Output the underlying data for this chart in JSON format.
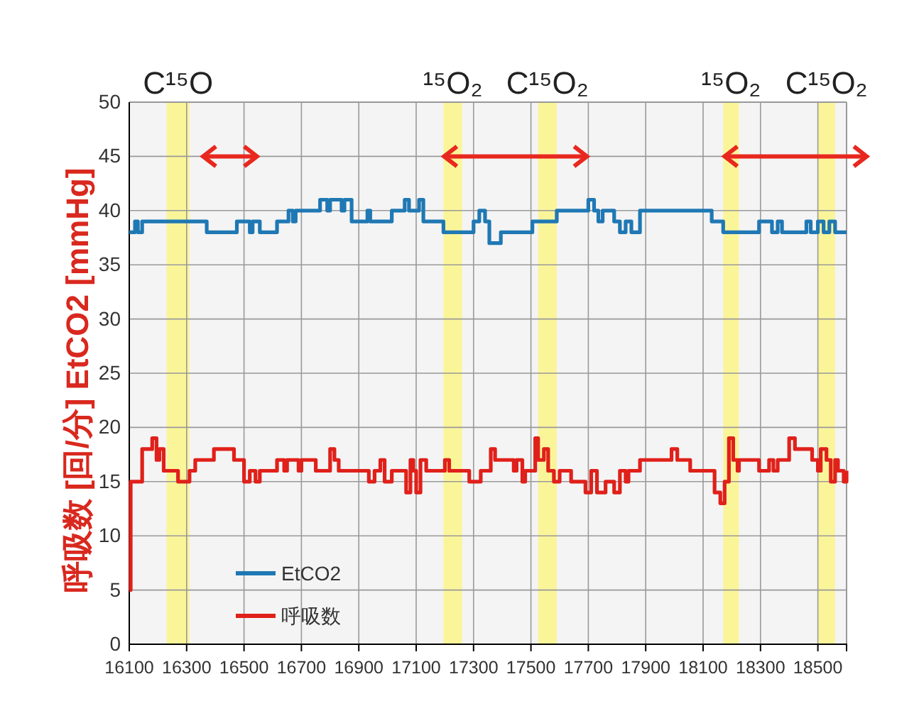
{
  "chart_data": {
    "type": "step",
    "ylabel": "呼吸数 [回/分]  EtCO2 [mmHg]",
    "xlim": [
      16100,
      18600
    ],
    "xticks": [
      16100,
      16300,
      16500,
      16700,
      16900,
      17100,
      17300,
      17500,
      17700,
      17900,
      18100,
      18300,
      18500
    ],
    "ylim": [
      0,
      50
    ],
    "yticks": [
      0,
      5,
      10,
      15,
      20,
      25,
      30,
      35,
      40,
      45,
      50
    ],
    "grid": true,
    "legend": "bottom left",
    "line_style": "solid",
    "marker": "none",
    "bands": [
      {
        "axis": "x",
        "from": 16230,
        "to": 16310,
        "label": "C¹⁵O",
        "color": "#fbf59a"
      },
      {
        "axis": "x",
        "from": 17195,
        "to": 17260,
        "label": "¹⁵O₂",
        "color": "#fbf59a"
      },
      {
        "axis": "x",
        "from": 17525,
        "to": 17590,
        "label": "C¹⁵O₂",
        "color": "#fbf59a"
      },
      {
        "axis": "x",
        "from": 18170,
        "to": 18225,
        "label": "¹⁵O₂",
        "color": "#fbf59a"
      },
      {
        "axis": "x",
        "from": 18500,
        "to": 18560,
        "label": "C¹⁵O₂",
        "color": "#fbf59a"
      }
    ],
    "series": [
      {
        "name": "EtCO2",
        "color": "#1f78b4",
        "x": [
          16100,
          16120,
          16130,
          16145,
          16370,
          16475,
          16520,
          16530,
          16555,
          16615,
          16655,
          16670,
          16680,
          16765,
          16790,
          16800,
          16840,
          16850,
          16875,
          16930,
          16940,
          17015,
          17060,
          17075,
          17110,
          17125,
          17195,
          17300,
          17320,
          17340,
          17355,
          17395,
          17505,
          17590,
          17700,
          17720,
          17735,
          17750,
          17790,
          17810,
          17830,
          17850,
          17880,
          18130,
          18170,
          18295,
          18340,
          18360,
          18375,
          18460,
          18475,
          18500,
          18520,
          18540,
          18560,
          18600
        ],
        "values": [
          38,
          39,
          38,
          39,
          38,
          39,
          38,
          39,
          38,
          39,
          40,
          39,
          40,
          41,
          40,
          41,
          40,
          41,
          39,
          40,
          39,
          40,
          41,
          40,
          41,
          39,
          38,
          39,
          40,
          39,
          37,
          38,
          39,
          40,
          41,
          40,
          39,
          40,
          39,
          38,
          39,
          38,
          40,
          39,
          38,
          39,
          38,
          39,
          38,
          39,
          38,
          39,
          38,
          39,
          38,
          38
        ]
      },
      {
        "name": "呼吸数",
        "color": "#e0201a",
        "x": [
          16100,
          16105,
          16145,
          16180,
          16195,
          16205,
          16220,
          16270,
          16310,
          16330,
          16395,
          16465,
          16500,
          16520,
          16540,
          16555,
          16615,
          16640,
          16650,
          16690,
          16700,
          16750,
          16800,
          16815,
          16830,
          16935,
          16955,
          16975,
          16990,
          17015,
          17065,
          17080,
          17090,
          17100,
          17115,
          17135,
          17200,
          17215,
          17285,
          17325,
          17360,
          17375,
          17440,
          17450,
          17470,
          17480,
          17515,
          17525,
          17545,
          17560,
          17580,
          17600,
          17640,
          17690,
          17710,
          17730,
          17760,
          17790,
          17810,
          17830,
          17840,
          17880,
          17990,
          18010,
          18055,
          18140,
          18160,
          18175,
          18190,
          18205,
          18220,
          18225,
          18295,
          18330,
          18345,
          18360,
          18400,
          18420,
          18480,
          18500,
          18510,
          18530,
          18545,
          18560,
          18570,
          18590,
          18600
        ],
        "values": [
          5,
          15,
          18,
          19,
          17,
          18,
          16,
          15,
          16,
          17,
          18,
          17,
          15,
          16,
          15,
          16,
          17,
          16,
          17,
          16,
          17,
          16,
          18,
          17,
          16,
          15,
          16,
          17,
          15,
          16,
          14,
          17,
          16,
          14,
          17,
          16,
          17,
          16,
          15,
          16,
          18,
          17,
          16,
          17,
          15,
          16,
          19,
          17,
          18,
          16,
          15,
          16,
          15,
          14,
          16,
          14,
          15,
          14,
          16,
          15,
          16,
          17,
          18,
          17,
          16,
          14,
          13,
          15,
          19,
          17,
          16,
          17,
          16,
          17,
          16,
          17,
          19,
          18,
          17,
          16,
          18,
          17,
          15,
          17,
          16,
          15,
          16
        ]
      }
    ]
  }
}
